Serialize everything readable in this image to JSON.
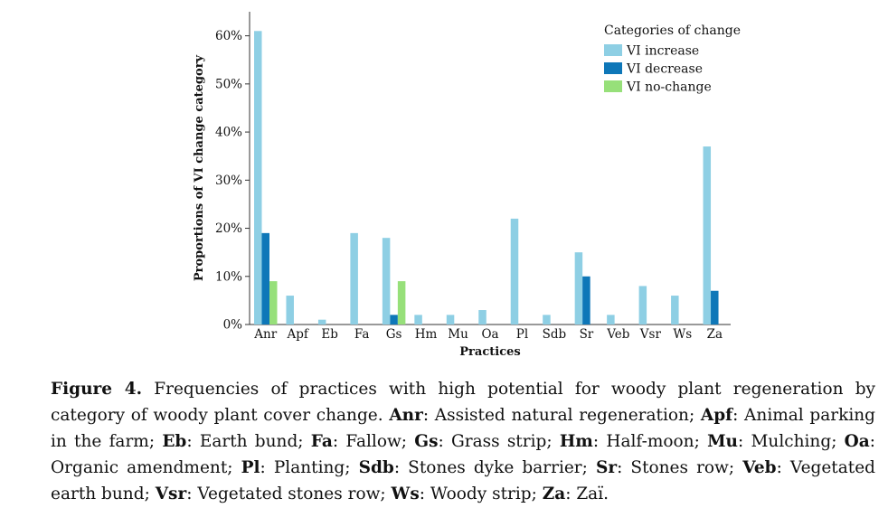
{
  "chart_data": {
    "type": "bar",
    "ylabel": "Proportions of VI change category",
    "xlabel": "Practices",
    "ylim": [
      0,
      65
    ],
    "yticks": [
      "0%",
      "10%",
      "20%",
      "30%",
      "40%",
      "50%",
      "60%"
    ],
    "grid": false,
    "legend_title": "Categories of change",
    "legend_position": "top-right",
    "categories": [
      "Anr",
      "Apf",
      "Eb",
      "Fa",
      "Gs",
      "Hm",
      "Mu",
      "Oa",
      "Pl",
      "Sdb",
      "Sr",
      "Veb",
      "Vsr",
      "Ws",
      "Za"
    ],
    "series": [
      {
        "name": "VI increase",
        "color": "#8ecfe4",
        "values": [
          61,
          6,
          1,
          19,
          18,
          2,
          2,
          3,
          22,
          2,
          15,
          2,
          8,
          6,
          37
        ]
      },
      {
        "name": "VI decrease",
        "color": "#0e77b8",
        "values": [
          19,
          0,
          0,
          0,
          2,
          0,
          0,
          0,
          0,
          0,
          10,
          0,
          0,
          0,
          7
        ]
      },
      {
        "name": "VI no-change",
        "color": "#97e07a",
        "values": [
          9,
          0,
          0,
          0,
          9,
          0,
          0,
          0,
          0,
          0,
          0,
          0,
          0,
          0,
          0
        ]
      }
    ]
  },
  "caption": {
    "label": "Figure 4.",
    "intro": " Frequencies of practices with high potential for woody plant regeneration by category of woody plant cover change. ",
    "terms": [
      {
        "abbr": "Anr",
        "def": "Assisted natural regeneration"
      },
      {
        "abbr": "Apf",
        "def": "Animal parking in the farm"
      },
      {
        "abbr": "Eb",
        "def": "Earth bund"
      },
      {
        "abbr": "Fa",
        "def": "Fallow"
      },
      {
        "abbr": "Gs",
        "def": "Grass strip"
      },
      {
        "abbr": "Hm",
        "def": "Half-moon"
      },
      {
        "abbr": "Mu",
        "def": "Mulching"
      },
      {
        "abbr": "Oa",
        "def": "Organic amendment"
      },
      {
        "abbr": "Pl",
        "def": "Planting"
      },
      {
        "abbr": "Sdb",
        "def": "Stones dyke barrier"
      },
      {
        "abbr": "Sr",
        "def": "Stones row"
      },
      {
        "abbr": "Veb",
        "def": "Vegetated earth bund"
      },
      {
        "abbr": "Vsr",
        "def": "Vegetated stones row"
      },
      {
        "abbr": "Ws",
        "def": "Woody strip"
      },
      {
        "abbr": "Za",
        "def": "Zaï"
      }
    ]
  }
}
